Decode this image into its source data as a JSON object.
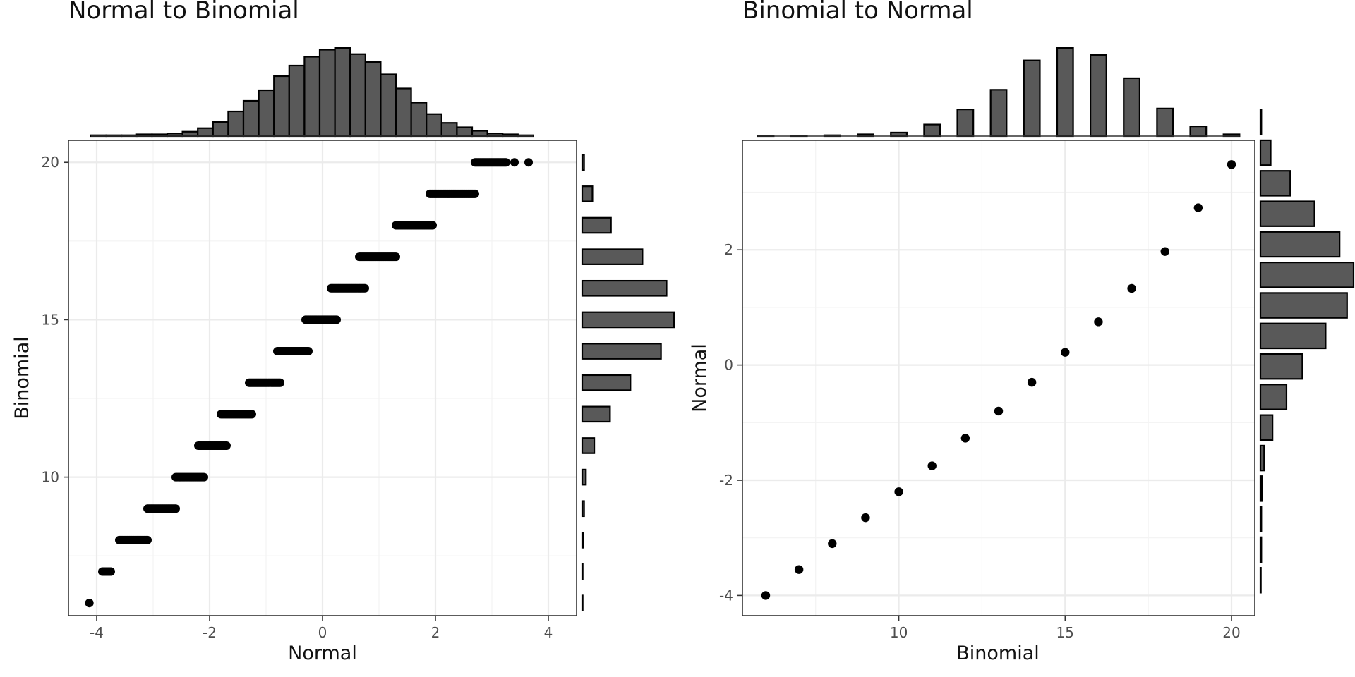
{
  "chart_data": [
    {
      "type": "scatter",
      "title": "Normal to Binomial",
      "xlabel": "Normal",
      "ylabel": "Binomial",
      "xlim": [
        -4.5,
        4.5
      ],
      "ylim": [
        5.6,
        20.7
      ],
      "x_ticks": [
        -4,
        -2,
        0,
        2,
        4
      ],
      "y_ticks": [
        10,
        15,
        20
      ],
      "grid": true,
      "point_bands": [
        {
          "y": 6,
          "x_start": -4.13,
          "x_end": -4.13
        },
        {
          "y": 7,
          "x_start": -3.9,
          "x_end": -3.75
        },
        {
          "y": 8,
          "x_start": -3.6,
          "x_end": -3.1
        },
        {
          "y": 9,
          "x_start": -3.1,
          "x_end": -2.6
        },
        {
          "y": 10,
          "x_start": -2.6,
          "x_end": -2.1
        },
        {
          "y": 11,
          "x_start": -2.2,
          "x_end": -1.7
        },
        {
          "y": 12,
          "x_start": -1.8,
          "x_end": -1.25
        },
        {
          "y": 13,
          "x_start": -1.3,
          "x_end": -0.75
        },
        {
          "y": 14,
          "x_start": -0.8,
          "x_end": -0.25
        },
        {
          "y": 15,
          "x_start": -0.3,
          "x_end": 0.25
        },
        {
          "y": 16,
          "x_start": 0.15,
          "x_end": 0.75
        },
        {
          "y": 17,
          "x_start": 0.65,
          "x_end": 1.3
        },
        {
          "y": 18,
          "x_start": 1.3,
          "x_end": 1.95
        },
        {
          "y": 19,
          "x_start": 1.9,
          "x_end": 2.7
        },
        {
          "y": 20,
          "x_start": 2.7,
          "x_end": 3.25
        }
      ],
      "extra_points": [
        {
          "x": 3.4,
          "y": 20
        },
        {
          "x": 3.65,
          "y": 20
        }
      ],
      "top_histogram": {
        "x_start": -4.1,
        "bin_width": 0.27,
        "counts": [
          1,
          1,
          1,
          2,
          2,
          3,
          5,
          9,
          16,
          28,
          40,
          52,
          68,
          80,
          90,
          98,
          100,
          93,
          84,
          70,
          54,
          38,
          25,
          15,
          10,
          6,
          3,
          2,
          1
        ]
      },
      "right_histogram": {
        "values": [
          6,
          7,
          8,
          9,
          10,
          11,
          12,
          13,
          14,
          15,
          16,
          17,
          18,
          19,
          20
        ],
        "counts": [
          0.5,
          0.5,
          1,
          2,
          4,
          13,
          30,
          52,
          85,
          99,
          91,
          65,
          31,
          11,
          2
        ]
      }
    },
    {
      "type": "scatter",
      "title": "Binomial to Normal",
      "xlabel": "Binomial",
      "ylabel": "Normal",
      "xlim": [
        5.3,
        20.7
      ],
      "ylim": [
        -4.35,
        3.9
      ],
      "x_ticks": [
        10,
        15,
        20
      ],
      "y_ticks": [
        -4,
        -2,
        0,
        2
      ],
      "grid": true,
      "points": [
        {
          "x": 6,
          "y": -4.0
        },
        {
          "x": 7,
          "y": -3.55
        },
        {
          "x": 8,
          "y": -3.1
        },
        {
          "x": 9,
          "y": -2.65
        },
        {
          "x": 10,
          "y": -2.2
        },
        {
          "x": 11,
          "y": -1.75
        },
        {
          "x": 12,
          "y": -1.27
        },
        {
          "x": 13,
          "y": -0.8
        },
        {
          "x": 14,
          "y": -0.3
        },
        {
          "x": 15,
          "y": 0.22
        },
        {
          "x": 16,
          "y": 0.75
        },
        {
          "x": 17,
          "y": 1.33
        },
        {
          "x": 18,
          "y": 1.97
        },
        {
          "x": 19,
          "y": 2.73
        },
        {
          "x": 20,
          "y": 3.48
        }
      ],
      "top_histogram": {
        "values": [
          6,
          7,
          8,
          9,
          10,
          11,
          12,
          13,
          14,
          15,
          16,
          17,
          18,
          19,
          20
        ],
        "counts": [
          0.5,
          0.5,
          1,
          2,
          4,
          13,
          30,
          52,
          85,
          99,
          91,
          65,
          31,
          11,
          2
        ]
      },
      "right_histogram": {
        "y_start": -4.0,
        "bin_width": 0.53,
        "counts": [
          0.5,
          1,
          1,
          1.5,
          4,
          13,
          28,
          45,
          70,
          93,
          100,
          85,
          58,
          32,
          11,
          1
        ]
      }
    }
  ]
}
